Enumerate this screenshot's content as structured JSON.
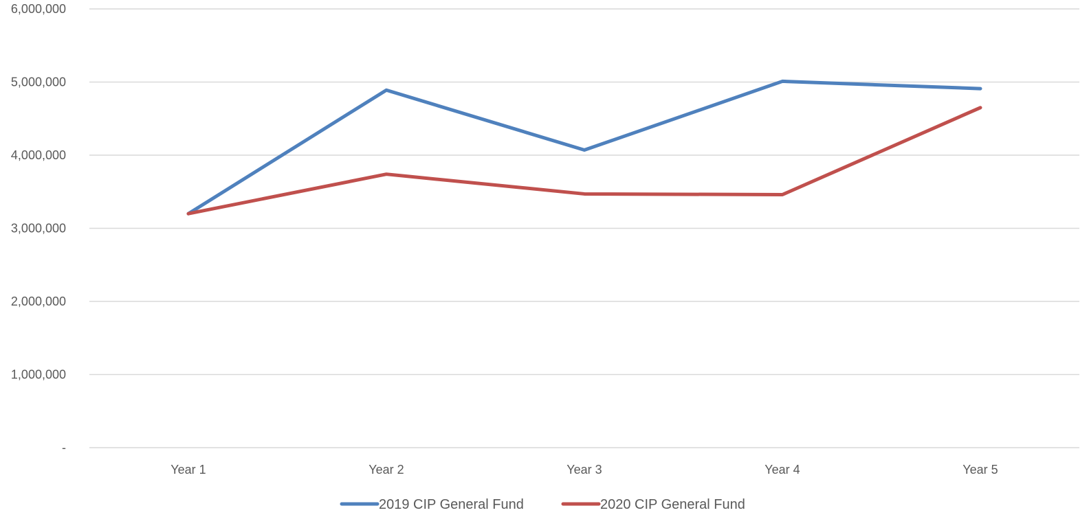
{
  "chart_data": {
    "type": "line",
    "categories": [
      "Year 1",
      "Year 2",
      "Year 3",
      "Year 4",
      "Year 5"
    ],
    "series": [
      {
        "name": "2019 CIP General Fund",
        "values": [
          3200000,
          4890000,
          4070000,
          5010000,
          4910000
        ],
        "color": "#4f81bd"
      },
      {
        "name": "2020 CIP General Fund",
        "values": [
          3200000,
          3740000,
          3470000,
          3460000,
          4650000
        ],
        "color": "#c0504d"
      }
    ],
    "ylim": [
      0,
      6000000
    ],
    "yticks": [
      0,
      1000000,
      2000000,
      3000000,
      4000000,
      5000000,
      6000000
    ],
    "ytick_labels": [
      "-",
      "1,000,000",
      "2,000,000",
      "3,000,000",
      "4,000,000",
      "5,000,000",
      "6,000,000"
    ],
    "grid": true,
    "legend_position": "bottom",
    "title": "",
    "xlabel": "",
    "ylabel": ""
  }
}
